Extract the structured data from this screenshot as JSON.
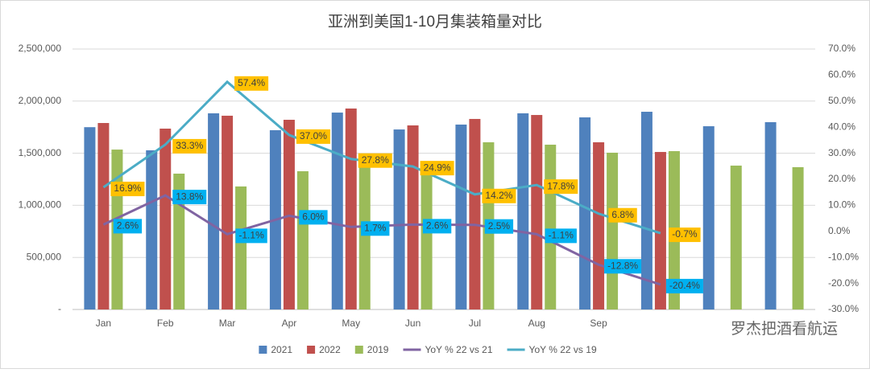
{
  "chart_data": {
    "type": "combo",
    "title": "亚洲到美国1-10月集装箱量对比",
    "categories": [
      "Jan",
      "Feb",
      "Mar",
      "Apr",
      "May",
      "Jun",
      "Jul",
      "Aug",
      "Sep",
      null,
      null,
      null
    ],
    "ylim": [
      0,
      2500000
    ],
    "yticks": [
      {
        "value": 0,
        "label": "-"
      },
      {
        "value": 500000,
        "label": "500,000"
      },
      {
        "value": 1000000,
        "label": "1,000,000"
      },
      {
        "value": 1500000,
        "label": "1,500,000"
      },
      {
        "value": 2000000,
        "label": "2,000,000"
      },
      {
        "value": 2500000,
        "label": "2,500,000"
      }
    ],
    "y2lim": [
      -30,
      70
    ],
    "y2ticks": [
      {
        "value": -30,
        "label": "-30.0%"
      },
      {
        "value": -20,
        "label": "-20.0%"
      },
      {
        "value": -10,
        "label": "-10.0%"
      },
      {
        "value": 0,
        "label": "0.0%"
      },
      {
        "value": 10,
        "label": "10.0%"
      },
      {
        "value": 20,
        "label": "20.0%"
      },
      {
        "value": 30,
        "label": "30.0%"
      },
      {
        "value": 40,
        "label": "40.0%"
      },
      {
        "value": 50,
        "label": "50.0%"
      },
      {
        "value": 60,
        "label": "60.0%"
      },
      {
        "value": 70,
        "label": "70.0%"
      }
    ],
    "grid": true,
    "series": [
      {
        "name": "2021",
        "type": "bar",
        "color": "#4f81bd",
        "values": [
          1750000,
          1528000,
          1883000,
          1721000,
          1890000,
          1728000,
          1775000,
          1883000,
          1844000,
          1898000,
          1759000,
          1798000
        ]
      },
      {
        "name": "2022",
        "type": "bar",
        "color": "#c0504d",
        "values": [
          1790000,
          1736000,
          1860000,
          1821000,
          1929000,
          1767000,
          1829000,
          1867000,
          1605000,
          1512000,
          null,
          null
        ]
      },
      {
        "name": "2019",
        "type": "bar",
        "color": "#9bbb59",
        "values": [
          1535000,
          1304000,
          1181000,
          1327000,
          1400000,
          1350000,
          1605000,
          1582000,
          1505000,
          1520000,
          1381000,
          1366000
        ]
      },
      {
        "name": "YoY % 22 vs 21",
        "type": "line",
        "axis": "y2",
        "color": "#8064a2",
        "label_background": "#00b0f0",
        "values": [
          2.6,
          13.8,
          -1.1,
          6.0,
          1.7,
          2.6,
          2.5,
          -1.1,
          -12.8,
          -20.4,
          null,
          null
        ],
        "value_labels": [
          "2.6%",
          "13.8%",
          "-1.1%",
          "6.0%",
          "1.7%",
          "2.6%",
          "2.5%",
          "-1.1%",
          "-12.8%",
          "-20.4%",
          null,
          null
        ]
      },
      {
        "name": "YoY % 22 vs 19",
        "type": "line",
        "axis": "y2",
        "color": "#4bacc6",
        "label_background": "#ffc000",
        "values": [
          16.9,
          33.3,
          57.4,
          37.0,
          27.8,
          24.9,
          14.2,
          17.8,
          6.8,
          -0.7,
          null,
          null
        ],
        "value_labels": [
          "16.9%",
          "33.3%",
          "57.4%",
          "37.0%",
          "27.8%",
          "24.9%",
          "14.2%",
          "17.8%",
          "6.8%",
          "-0.7%",
          null,
          null
        ]
      }
    ],
    "watermark": "罗杰把酒看航运"
  }
}
